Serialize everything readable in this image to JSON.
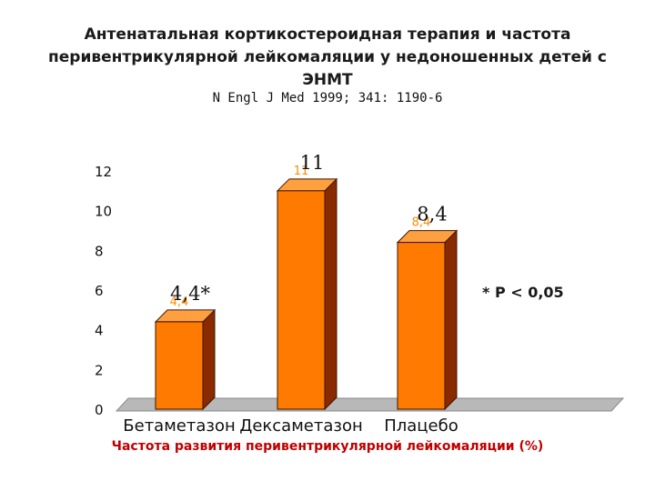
{
  "slide": {
    "title_lines": [
      "Антенатальная кортикостероидная терапия и частота",
      "перивентрикулярной лейкомаляции у недоношенных детей с",
      "ЭНМТ"
    ],
    "citation": "N Engl J Med 1999; 341: 1190-6",
    "significance_note": "* P < 0,05"
  },
  "chart_data": {
    "type": "bar",
    "title": "Антенатальная кортикостероидная терапия и частота перивентрикулярной лейкомаляции у недоношенных детей с ЭНМТ",
    "xlabel": "Частота развития перивентрикулярной лейкомаляции (%)",
    "ylabel": "",
    "categories": [
      "Бетаметазон",
      "Дексаметазон",
      "Плацебо"
    ],
    "values": [
      4.4,
      11,
      8.4
    ],
    "data_labels": [
      "4,4*",
      "11",
      "8,4"
    ],
    "data_labels_small": [
      "4,4",
      "11",
      "8,4"
    ],
    "ylim": [
      0,
      12
    ],
    "yticks": [
      0,
      2,
      4,
      6,
      8,
      10,
      12
    ],
    "ytick_labels": [
      "0",
      "2",
      "4",
      "6",
      "8",
      "10",
      "12"
    ],
    "colors": {
      "bar_front": "#ff7a00",
      "bar_side": "#8a2a00",
      "bar_top": "#ffa040",
      "small_label": "#ff8c00",
      "floor": "#b8b8b8",
      "xlabel": "#c00000"
    }
  }
}
